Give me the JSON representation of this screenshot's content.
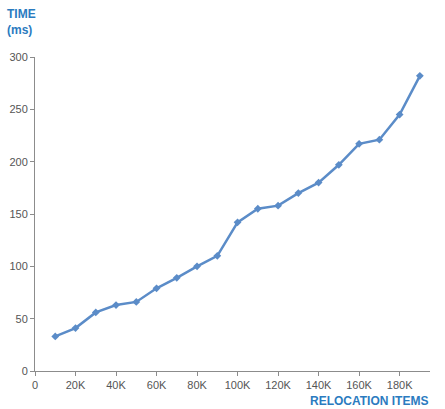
{
  "chart_data": {
    "type": "line",
    "x_label": "RELOCATION ITEMS",
    "y_label": "TIME\n(ms)",
    "x": [
      10000,
      20000,
      30000,
      40000,
      50000,
      60000,
      70000,
      80000,
      90000,
      100000,
      110000,
      120000,
      130000,
      140000,
      150000,
      160000,
      170000,
      180000,
      190000
    ],
    "values": [
      33,
      41,
      56,
      63,
      66,
      79,
      89,
      100,
      110,
      142,
      155,
      158,
      170,
      180,
      197,
      217,
      221,
      245,
      282
    ],
    "color": "#5b8cc8",
    "marker": "diamond",
    "line_style": "solid",
    "xlim": [
      0,
      195000
    ],
    "xticks": [
      0,
      {
        "value": 20000,
        "label": "20K"
      },
      {
        "value": 40000,
        "label": "40K"
      },
      {
        "value": 60000,
        "label": "60K"
      },
      {
        "value": 80000,
        "label": "80K"
      },
      {
        "value": 100000,
        "label": "100K"
      },
      {
        "value": 120000,
        "label": "120K"
      },
      {
        "value": 140000,
        "label": "140K"
      },
      {
        "value": 160000,
        "label": "160K"
      },
      {
        "value": 180000,
        "label": "180K"
      }
    ],
    "ylim": [
      0,
      300
    ],
    "yticks": [
      0,
      50,
      100,
      150,
      200,
      250,
      300
    ],
    "grid": false
  }
}
